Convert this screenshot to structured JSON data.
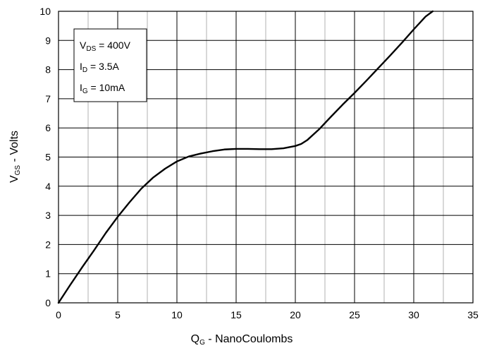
{
  "chart_data": {
    "type": "line",
    "xlabel": {
      "main": "Q",
      "sub": "G",
      "rest": " - NanoCoulombs"
    },
    "ylabel": {
      "main": "V",
      "sub": "GS",
      "rest": " - Volts"
    },
    "xlim": [
      0,
      35
    ],
    "ylim": [
      0,
      10
    ],
    "x_major_ticks": [
      0,
      5,
      10,
      15,
      20,
      25,
      30,
      35
    ],
    "x_minor_ticks": [
      2.5,
      7.5,
      12.5,
      17.5,
      22.5,
      27.5,
      32.5
    ],
    "y_ticks": [
      0,
      1,
      2,
      3,
      4,
      5,
      6,
      7,
      8,
      9,
      10
    ],
    "grid": true,
    "legend_position": "top-left",
    "conditions": [
      {
        "main": "V",
        "sub": "DS",
        "rest": " = 400V"
      },
      {
        "main": "I",
        "sub": "D",
        "rest": " = 3.5A"
      },
      {
        "main": "I",
        "sub": "G",
        "rest": " = 10mA"
      }
    ],
    "series": [
      {
        "x": [
          0,
          1,
          2,
          3,
          4,
          5,
          6,
          7,
          8,
          9,
          10,
          11,
          12,
          13,
          14,
          15,
          16,
          17,
          18,
          19,
          20,
          20.5,
          21,
          22,
          23,
          24,
          25,
          26,
          27,
          28,
          29,
          30,
          31,
          31.6
        ],
        "y": [
          0,
          0.62,
          1.22,
          1.8,
          2.4,
          2.95,
          3.45,
          3.92,
          4.3,
          4.6,
          4.85,
          5.02,
          5.12,
          5.2,
          5.26,
          5.28,
          5.28,
          5.27,
          5.27,
          5.3,
          5.38,
          5.45,
          5.58,
          5.95,
          6.38,
          6.8,
          7.2,
          7.62,
          8.05,
          8.48,
          8.92,
          9.38,
          9.82,
          10.0
        ]
      }
    ]
  }
}
